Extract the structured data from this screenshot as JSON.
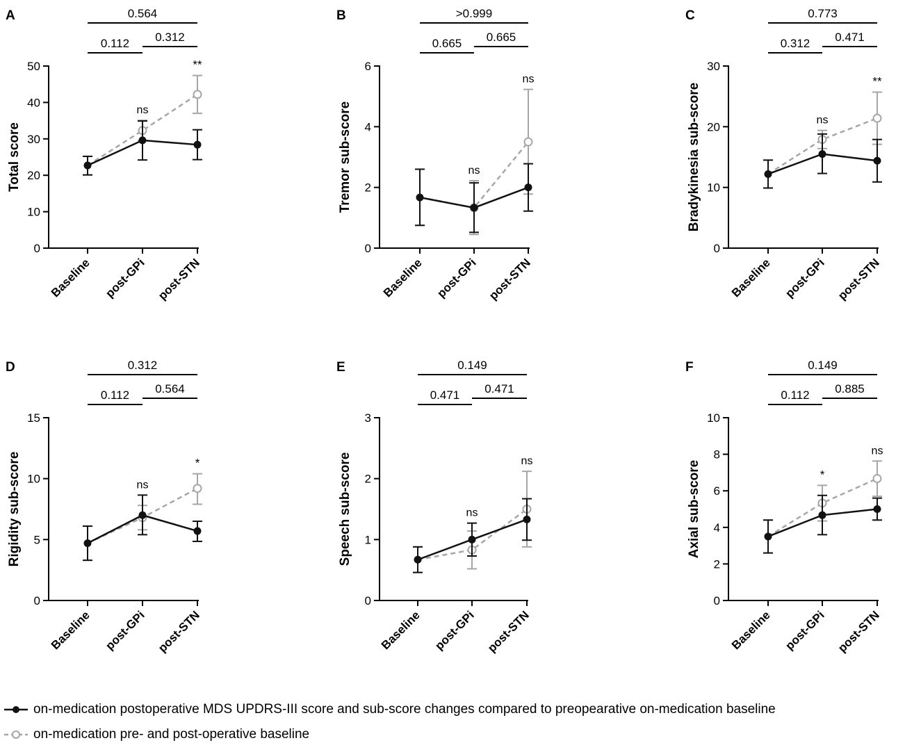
{
  "chart_data": [
    {
      "panel": "A",
      "type": "line",
      "ylabel": "Total score",
      "categories": [
        "Baseline",
        "post-GPi",
        "post-STN"
      ],
      "ylim": [
        0,
        50
      ],
      "yticks": [
        0,
        10,
        20,
        30,
        40,
        50
      ],
      "series": [
        {
          "name": "on-medication postoperative MDS UPDRS-III score and sub-score changes compared to preopearative on-medication baseline",
          "style": "solid",
          "values": [
            22.7,
            29.6,
            28.4
          ],
          "err_low": [
            20.1,
            24.2,
            24.3
          ],
          "err_high": [
            25.2,
            34.9,
            32.5
          ]
        },
        {
          "name": "on-medication pre- and post-operative baseline",
          "style": "dashed",
          "values": [
            22.7,
            32.3,
            42.2
          ],
          "err_low": [
            20.1,
            29.5,
            37.0
          ],
          "err_high": [
            25.2,
            35.1,
            47.4
          ]
        }
      ],
      "annotations": [
        "ns",
        "**"
      ],
      "comparisons": [
        {
          "label": "0.112"
        },
        {
          "label": "0.312"
        },
        {
          "label": "0.564"
        }
      ]
    },
    {
      "panel": "B",
      "type": "line",
      "ylabel": "Tremor sub-score",
      "categories": [
        "Baseline",
        "post-GPi",
        "post-STN"
      ],
      "ylim": [
        0,
        6
      ],
      "yticks": [
        0,
        2,
        4,
        6
      ],
      "series": [
        {
          "name": "solid",
          "style": "solid",
          "values": [
            1.67,
            1.33,
            2.0
          ],
          "err_low": [
            0.75,
            0.52,
            1.22
          ],
          "err_high": [
            2.6,
            2.15,
            2.78
          ]
        },
        {
          "name": "dashed",
          "style": "dashed",
          "values": [
            1.67,
            1.33,
            3.5
          ],
          "err_low": [
            0.75,
            0.45,
            1.78
          ],
          "err_high": [
            2.6,
            2.22,
            5.23
          ]
        }
      ],
      "annotations": [
        "ns",
        "ns"
      ],
      "comparisons": [
        {
          "label": "0.665"
        },
        {
          "label": "0.665"
        },
        {
          "label": ">0.999"
        }
      ]
    },
    {
      "panel": "C",
      "type": "line",
      "ylabel": "Bradykinesia sub-score",
      "categories": [
        "Baseline",
        "post-GPi",
        "post-STN"
      ],
      "ylim": [
        0,
        30
      ],
      "yticks": [
        0,
        10,
        20,
        30
      ],
      "series": [
        {
          "name": "solid",
          "style": "solid",
          "values": [
            12.2,
            15.5,
            14.4
          ],
          "err_low": [
            9.9,
            12.3,
            10.9
          ],
          "err_high": [
            14.5,
            18.8,
            17.9
          ]
        },
        {
          "name": "dashed",
          "style": "dashed",
          "values": [
            12.2,
            17.9,
            21.4
          ],
          "err_low": [
            9.9,
            16.4,
            17.1
          ],
          "err_high": [
            14.5,
            19.4,
            25.7
          ]
        }
      ],
      "annotations": [
        "ns",
        "**"
      ],
      "comparisons": [
        {
          "label": "0.312"
        },
        {
          "label": "0.471"
        },
        {
          "label": "0.773"
        }
      ]
    },
    {
      "panel": "D",
      "type": "line",
      "ylabel": "Rigidity sub-score",
      "categories": [
        "Baseline",
        "post-GPi",
        "post-STN"
      ],
      "ylim": [
        0,
        15
      ],
      "yticks": [
        0,
        5,
        10,
        15
      ],
      "series": [
        {
          "name": "solid",
          "style": "solid",
          "values": [
            4.7,
            7.0,
            5.7
          ],
          "err_low": [
            3.3,
            5.4,
            4.85
          ],
          "err_high": [
            6.1,
            8.65,
            6.5
          ]
        },
        {
          "name": "dashed",
          "style": "dashed",
          "values": [
            4.7,
            6.8,
            9.2
          ],
          "err_low": [
            3.3,
            5.8,
            7.9
          ],
          "err_high": [
            6.1,
            7.8,
            10.4
          ]
        }
      ],
      "annotations": [
        "ns",
        "*"
      ],
      "comparisons": [
        {
          "label": "0.112"
        },
        {
          "label": "0.564"
        },
        {
          "label": "0.312"
        }
      ]
    },
    {
      "panel": "E",
      "type": "line",
      "ylabel": "Speech sub-score",
      "categories": [
        "Baseline",
        "post-GPi",
        "post-STN"
      ],
      "ylim": [
        0,
        3
      ],
      "yticks": [
        0,
        1,
        2,
        3
      ],
      "series": [
        {
          "name": "solid",
          "style": "solid",
          "values": [
            0.67,
            1.0,
            1.33
          ],
          "err_low": [
            0.46,
            0.73,
            0.99
          ],
          "err_high": [
            0.88,
            1.27,
            1.67
          ]
        },
        {
          "name": "dashed",
          "style": "dashed",
          "values": [
            0.67,
            0.83,
            1.5
          ],
          "err_low": [
            0.46,
            0.52,
            0.88
          ],
          "err_high": [
            0.88,
            1.14,
            2.12
          ]
        }
      ],
      "annotations": [
        "ns",
        "ns"
      ],
      "comparisons": [
        {
          "label": "0.471"
        },
        {
          "label": "0.471"
        },
        {
          "label": "0.149"
        }
      ]
    },
    {
      "panel": "F",
      "type": "line",
      "ylabel": "Axial sub-score",
      "categories": [
        "Baseline",
        "post-GPi",
        "post-STN"
      ],
      "ylim": [
        0,
        10
      ],
      "yticks": [
        0,
        2,
        4,
        6,
        8,
        10
      ],
      "series": [
        {
          "name": "solid",
          "style": "solid",
          "values": [
            3.5,
            4.67,
            5.0
          ],
          "err_low": [
            2.6,
            3.6,
            4.4
          ],
          "err_high": [
            4.4,
            5.75,
            5.6
          ]
        },
        {
          "name": "dashed",
          "style": "dashed",
          "values": [
            3.5,
            5.33,
            6.67
          ],
          "err_low": [
            2.6,
            4.35,
            5.7
          ],
          "err_high": [
            4.4,
            6.3,
            7.63
          ]
        }
      ],
      "annotations": [
        "*",
        "ns"
      ],
      "comparisons": [
        {
          "label": "0.112"
        },
        {
          "label": "0.885"
        },
        {
          "label": "0.149"
        }
      ]
    }
  ],
  "legend": {
    "entries": [
      {
        "label": "on-medication postoperative MDS UPDRS-III score and sub-score changes compared to preopearative on-medication baseline",
        "style": "solid",
        "color": "#111111"
      },
      {
        "label": "on-medication pre- and post-operative baseline",
        "style": "dashed",
        "color": "#a6a6a6"
      }
    ]
  },
  "colors": {
    "solid": "#111111",
    "dashed": "#a6a6a6"
  }
}
